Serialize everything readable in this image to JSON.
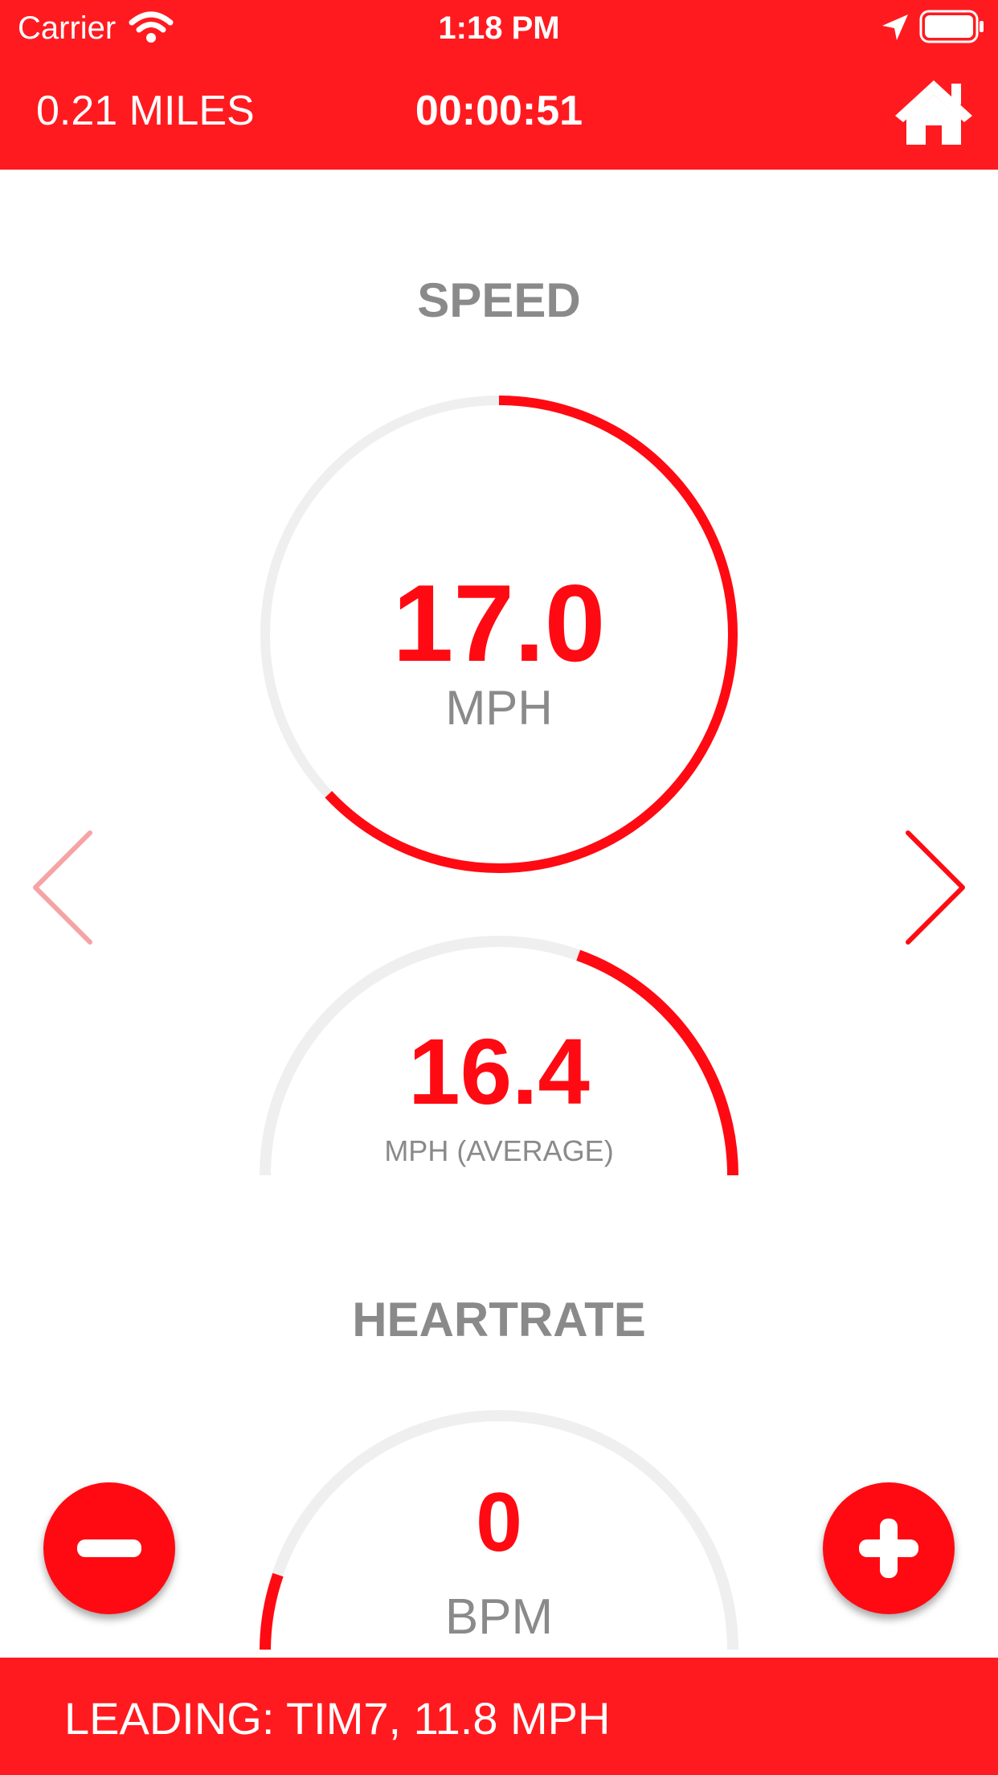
{
  "status_bar": {
    "carrier": "Carrier",
    "time": "1:18 PM"
  },
  "header": {
    "distance": "0.21 MILES",
    "elapsed": "00:00:51",
    "home_icon": "home-icon"
  },
  "speed": {
    "title": "SPEED",
    "current": {
      "value": "17.0",
      "unit": "MPH",
      "progress": 0.63
    },
    "average": {
      "value": "16.4",
      "unit": "MPH (AVERAGE)",
      "progress": 0.39
    }
  },
  "heartrate": {
    "title": "HEARTRATE",
    "value": "0",
    "unit": "BPM"
  },
  "footer": {
    "leading": "LEADING: TIM7, 11.8 MPH"
  },
  "colors": {
    "accent": "#ff1a1f",
    "value": "#ff0a12",
    "track": "#efefef",
    "label": "#8a8a8a"
  }
}
